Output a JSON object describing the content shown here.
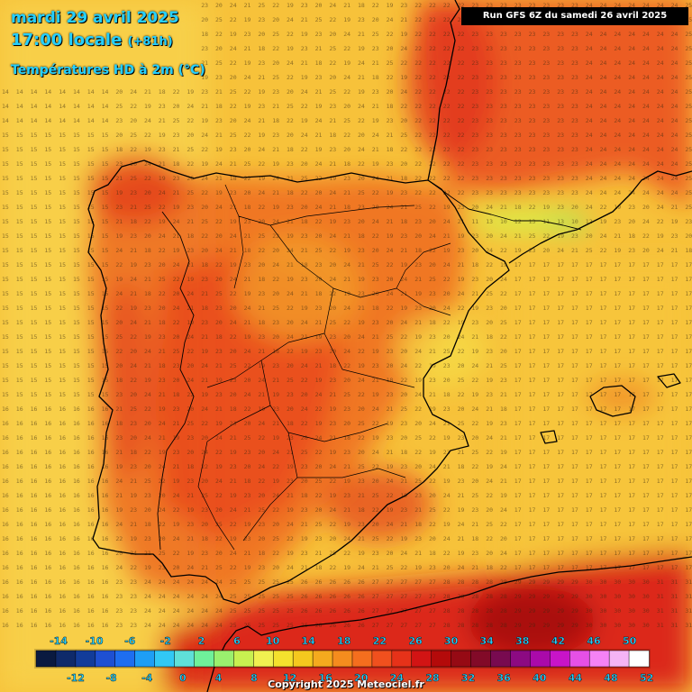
{
  "header": {
    "date_line": "mardi 29 avril 2025",
    "time_line": "17:00 locale",
    "time_offset": "(+81h)",
    "variable": "Températures HD à 2m (°C)",
    "run": "Run GFS 6Z du samedi 26 avril 2025"
  },
  "footer": {
    "copyright": "Copyright 2025 Meteociel.fr"
  },
  "colors": {
    "coastline": "#000000",
    "title_text": "#25d0ff",
    "run_box_bg": "#000000"
  },
  "legend": {
    "top_labels": [
      "-14",
      "-10",
      "-6",
      "-2",
      "2",
      "6",
      "10",
      "14",
      "18",
      "22",
      "26",
      "30",
      "34",
      "38",
      "42",
      "46",
      "50"
    ],
    "bottom_labels": [
      "-12",
      "-8",
      "-4",
      "0",
      "4",
      "8",
      "12",
      "16",
      "20",
      "24",
      "28",
      "32",
      "36",
      "40",
      "44",
      "48",
      "52"
    ],
    "colors": [
      "#0a1a40",
      "#0f2a6a",
      "#123c9a",
      "#1e50d2",
      "#1e6ef0",
      "#1e9ef5",
      "#31c8f5",
      "#5fe0d8",
      "#6ff09a",
      "#9af06e",
      "#c8f050",
      "#f0f050",
      "#f5e12d",
      "#f5c81e",
      "#f5aa1e",
      "#f58c1e",
      "#f56e1e",
      "#f0501e",
      "#e63219",
      "#d21414",
      "#b40a0a",
      "#960a14",
      "#820a28",
      "#780a50",
      "#8c0a82",
      "#aa0aaa",
      "#c814c8",
      "#e650e6",
      "#f582f5",
      "#f5b4f5",
      "#ffffff"
    ]
  }
}
